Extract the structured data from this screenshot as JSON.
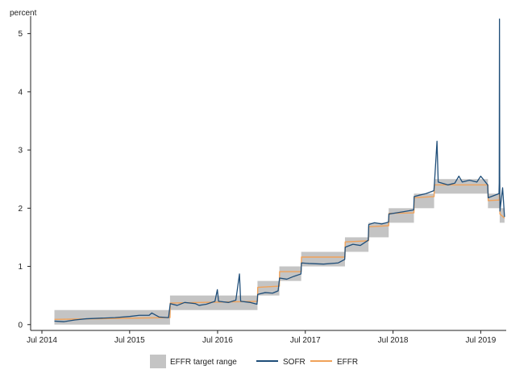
{
  "chart_data": {
    "type": "line",
    "ylabel": "percent",
    "xlabel": "",
    "title": "",
    "ylim": [
      -0.1,
      5.3
    ],
    "xlim": [
      "2014-05-15",
      "2019-10-15"
    ],
    "y_ticks": [
      0,
      1,
      2,
      3,
      4,
      5
    ],
    "x_ticks": [
      {
        "date": "2014-07-01",
        "label": "Jul 2014"
      },
      {
        "date": "2015-07-01",
        "label": "Jul 2015"
      },
      {
        "date": "2016-07-01",
        "label": "Jul 2016"
      },
      {
        "date": "2017-07-01",
        "label": "Jul 2017"
      },
      {
        "date": "2018-07-01",
        "label": "Jul 2018"
      },
      {
        "date": "2019-07-01",
        "label": "Jul 2019"
      }
    ],
    "legend_position": "bottom",
    "grid": false,
    "colors": {
      "range": "#c4c4c4",
      "sofr": "#1f4e79",
      "effr": "#f0a25a"
    },
    "series": [
      {
        "name": "EFFR target range",
        "kind": "range",
        "segments": [
          {
            "start": "2014-08-22",
            "end": "2015-12-16",
            "low": 0.0,
            "high": 0.25
          },
          {
            "start": "2015-12-16",
            "end": "2016-12-14",
            "low": 0.25,
            "high": 0.5
          },
          {
            "start": "2016-12-14",
            "end": "2017-03-15",
            "low": 0.5,
            "high": 0.75
          },
          {
            "start": "2017-03-15",
            "end": "2017-06-14",
            "low": 0.75,
            "high": 1.0
          },
          {
            "start": "2017-06-14",
            "end": "2017-12-13",
            "low": 1.0,
            "high": 1.25
          },
          {
            "start": "2017-12-13",
            "end": "2018-03-21",
            "low": 1.25,
            "high": 1.5
          },
          {
            "start": "2018-03-21",
            "end": "2018-06-13",
            "low": 1.5,
            "high": 1.75
          },
          {
            "start": "2018-06-13",
            "end": "2018-09-26",
            "low": 1.75,
            "high": 2.0
          },
          {
            "start": "2018-09-26",
            "end": "2018-12-19",
            "low": 2.0,
            "high": 2.25
          },
          {
            "start": "2018-12-19",
            "end": "2019-07-31",
            "low": 2.25,
            "high": 2.5
          },
          {
            "start": "2019-07-31",
            "end": "2019-09-18",
            "low": 2.0,
            "high": 2.25
          },
          {
            "start": "2019-09-18",
            "end": "2019-10-08",
            "low": 1.75,
            "high": 2.0
          }
        ]
      },
      {
        "name": "SOFR",
        "kind": "line",
        "points": [
          [
            "2014-08-22",
            0.06
          ],
          [
            "2014-10-01",
            0.05
          ],
          [
            "2014-11-15",
            0.08
          ],
          [
            "2015-01-01",
            0.1
          ],
          [
            "2015-03-01",
            0.11
          ],
          [
            "2015-05-01",
            0.12
          ],
          [
            "2015-07-01",
            0.14
          ],
          [
            "2015-08-10",
            0.16
          ],
          [
            "2015-09-20",
            0.16
          ],
          [
            "2015-10-01",
            0.2
          ],
          [
            "2015-11-01",
            0.13
          ],
          [
            "2015-12-10",
            0.12
          ],
          [
            "2015-12-17",
            0.36
          ],
          [
            "2016-01-15",
            0.33
          ],
          [
            "2016-02-15",
            0.38
          ],
          [
            "2016-03-31",
            0.36
          ],
          [
            "2016-04-15",
            0.33
          ],
          [
            "2016-05-15",
            0.35
          ],
          [
            "2016-06-20",
            0.4
          ],
          [
            "2016-06-30",
            0.6
          ],
          [
            "2016-07-05",
            0.4
          ],
          [
            "2016-08-15",
            0.38
          ],
          [
            "2016-09-15",
            0.42
          ],
          [
            "2016-09-30",
            0.87
          ],
          [
            "2016-10-05",
            0.4
          ],
          [
            "2016-11-15",
            0.38
          ],
          [
            "2016-12-12",
            0.35
          ],
          [
            "2016-12-15",
            0.52
          ],
          [
            "2017-01-15",
            0.55
          ],
          [
            "2017-02-15",
            0.54
          ],
          [
            "2017-03-10",
            0.58
          ],
          [
            "2017-03-16",
            0.8
          ],
          [
            "2017-04-15",
            0.78
          ],
          [
            "2017-05-15",
            0.83
          ],
          [
            "2017-06-13",
            0.87
          ],
          [
            "2017-06-15",
            1.06
          ],
          [
            "2017-07-15",
            1.05
          ],
          [
            "2017-09-15",
            1.04
          ],
          [
            "2017-11-15",
            1.06
          ],
          [
            "2017-12-12",
            1.12
          ],
          [
            "2017-12-14",
            1.33
          ],
          [
            "2018-01-15",
            1.38
          ],
          [
            "2018-02-15",
            1.36
          ],
          [
            "2018-03-20",
            1.45
          ],
          [
            "2018-03-22",
            1.72
          ],
          [
            "2018-04-15",
            1.75
          ],
          [
            "2018-05-15",
            1.73
          ],
          [
            "2018-06-12",
            1.76
          ],
          [
            "2018-06-14",
            1.9
          ],
          [
            "2018-07-15",
            1.92
          ],
          [
            "2018-08-15",
            1.94
          ],
          [
            "2018-09-25",
            1.97
          ],
          [
            "2018-09-27",
            2.2
          ],
          [
            "2018-10-15",
            2.22
          ],
          [
            "2018-11-15",
            2.25
          ],
          [
            "2018-12-18",
            2.3
          ],
          [
            "2018-12-20",
            2.4
          ],
          [
            "2018-12-31",
            3.15
          ],
          [
            "2019-01-05",
            2.45
          ],
          [
            "2019-02-15",
            2.4
          ],
          [
            "2019-03-15",
            2.43
          ],
          [
            "2019-04-01",
            2.55
          ],
          [
            "2019-04-15",
            2.45
          ],
          [
            "2019-05-15",
            2.48
          ],
          [
            "2019-06-15",
            2.45
          ],
          [
            "2019-07-01",
            2.55
          ],
          [
            "2019-07-30",
            2.4
          ],
          [
            "2019-08-01",
            2.18
          ],
          [
            "2019-09-15",
            2.25
          ],
          [
            "2019-09-16",
            2.43
          ],
          [
            "2019-09-17",
            5.25
          ],
          [
            "2019-09-18",
            2.55
          ],
          [
            "2019-09-19",
            1.95
          ],
          [
            "2019-09-30",
            2.35
          ],
          [
            "2019-10-08",
            1.85
          ]
        ]
      },
      {
        "name": "EFFR",
        "kind": "line",
        "points": [
          [
            "2014-08-22",
            0.09
          ],
          [
            "2015-12-16",
            0.12
          ],
          [
            "2015-12-17",
            0.37
          ],
          [
            "2016-12-14",
            0.4
          ],
          [
            "2016-12-15",
            0.64
          ],
          [
            "2017-03-15",
            0.66
          ],
          [
            "2017-03-16",
            0.91
          ],
          [
            "2017-06-14",
            0.91
          ],
          [
            "2017-06-15",
            1.16
          ],
          [
            "2017-12-13",
            1.16
          ],
          [
            "2017-12-14",
            1.42
          ],
          [
            "2018-03-21",
            1.44
          ],
          [
            "2018-03-22",
            1.68
          ],
          [
            "2018-06-13",
            1.7
          ],
          [
            "2018-06-14",
            1.91
          ],
          [
            "2018-09-26",
            1.92
          ],
          [
            "2018-09-27",
            2.18
          ],
          [
            "2018-12-19",
            2.2
          ],
          [
            "2018-12-20",
            2.4
          ],
          [
            "2019-07-31",
            2.4
          ],
          [
            "2019-08-01",
            2.13
          ],
          [
            "2019-09-16",
            2.14
          ],
          [
            "2019-09-17",
            2.3
          ],
          [
            "2019-09-18",
            2.25
          ],
          [
            "2019-09-19",
            1.9
          ],
          [
            "2019-10-08",
            1.83
          ]
        ]
      }
    ]
  }
}
